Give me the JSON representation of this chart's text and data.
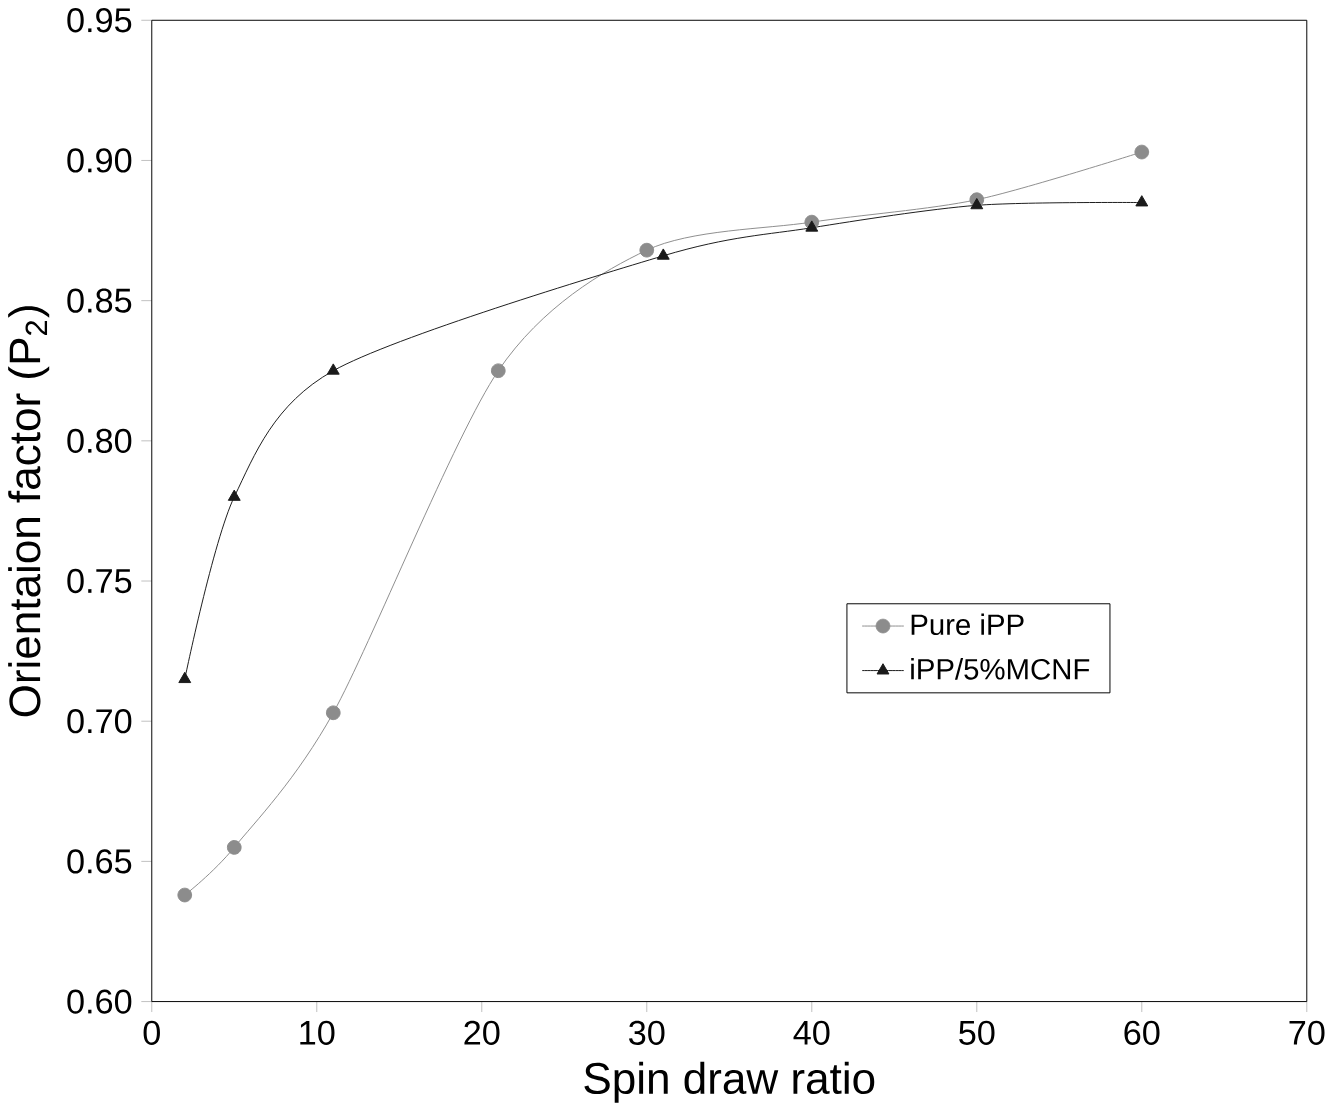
{
  "chart_data": {
    "type": "line",
    "xlabel": "Spin draw ratio",
    "ylabel": "Orientaion factor (P$_{2}$)",
    "xlim": [
      0,
      70
    ],
    "xticks": [
      0,
      10,
      20,
      30,
      40,
      50,
      60,
      70
    ],
    "ylim": [
      0.6,
      0.95
    ],
    "yticks": [
      {
        "value": 0.6,
        "label": "0.60"
      },
      {
        "value": 0.65,
        "label": "0.65"
      },
      {
        "value": 0.7,
        "label": "0.70"
      },
      {
        "value": 0.75,
        "label": "0.75"
      },
      {
        "value": 0.8,
        "label": "0.80"
      },
      {
        "value": 0.85,
        "label": "0.85"
      },
      {
        "value": 0.9,
        "label": "0.90"
      },
      {
        "value": 0.95,
        "label": "0.95"
      }
    ],
    "legend": "right",
    "grid": false,
    "series": [
      {
        "name": "Pure iPP",
        "color": "#8c8c8c",
        "marker": "circle",
        "x": [
          2,
          5,
          11,
          21,
          30,
          40,
          50,
          60
        ],
        "values": [
          0.638,
          0.655,
          0.703,
          0.825,
          0.868,
          0.878,
          0.886,
          0.903
        ]
      },
      {
        "name": "iPP/5%MCNF",
        "color": "#1a1a1a",
        "marker": "triangle",
        "x": [
          2,
          5,
          11,
          31,
          40,
          50,
          60
        ],
        "values": [
          0.715,
          0.78,
          0.825,
          0.866,
          0.876,
          0.884,
          0.885
        ]
      }
    ]
  }
}
